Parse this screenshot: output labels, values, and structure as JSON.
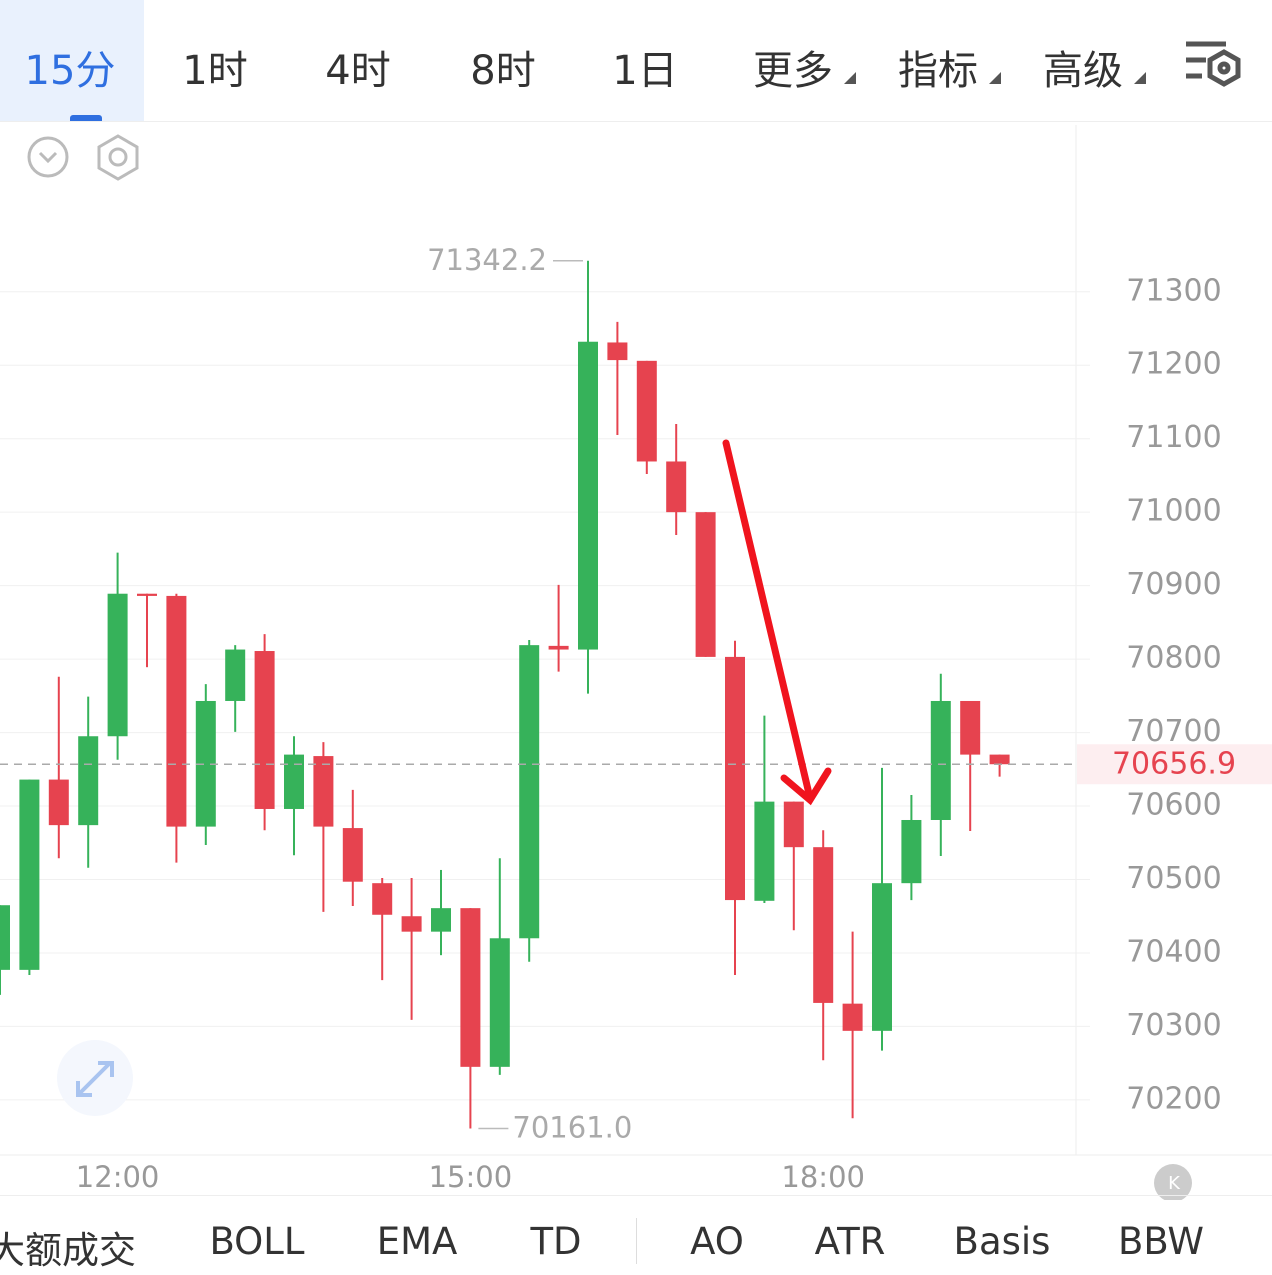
{
  "toolbar": {
    "tabs": [
      "15分",
      "1时",
      "4时",
      "8时",
      "1日",
      "更多",
      "指标",
      "高级"
    ]
  },
  "indicators": [
    "大额成交",
    "BOLL",
    "EMA",
    "TD",
    "AO",
    "ATR",
    "Basis",
    "BBW"
  ],
  "chart_data": {
    "type": "candlestick",
    "categories": [
      null,
      null,
      null,
      null,
      "12:00",
      null,
      null,
      null,
      null,
      null,
      null,
      null,
      null,
      null,
      null,
      null,
      "15:00",
      null,
      null,
      null,
      null,
      null,
      null,
      null,
      null,
      null,
      null,
      null,
      "18:00",
      null,
      null,
      null,
      null,
      null,
      null
    ],
    "open": [
      70377,
      70377,
      70636,
      70574,
      70695,
      70889,
      70886,
      70572,
      70743,
      70811,
      70596,
      70668,
      70570,
      70495,
      70450,
      70429,
      70461,
      70245,
      70420,
      70818,
      70813,
      71231,
      71206,
      71069,
      71000,
      70803,
      70471,
      70606,
      70544,
      70331,
      70294,
      70495,
      70581,
      70743,
      70670
    ],
    "high": [
      70465,
      70636,
      70776,
      70749,
      70945,
      70889,
      70889,
      70766,
      70819,
      70834,
      70695,
      70687,
      70622,
      70502,
      70502,
      70513,
      70461,
      70529,
      70826,
      70901,
      71342.2,
      71259,
      71206,
      71120,
      71000,
      70825,
      70723,
      70606,
      70567,
      70429,
      70652,
      70615,
      70780,
      70743,
      70670
    ],
    "low": [
      70343,
      70370,
      70529,
      70516,
      70663,
      70789,
      70523,
      70547,
      70701,
      70567,
      70533,
      70456,
      70464,
      70363,
      70309,
      70397,
      70161.0,
      70234,
      70388,
      70783,
      70753,
      71105,
      71052,
      70969,
      70803,
      70370,
      70468,
      70431,
      70254,
      70175,
      70267,
      70472,
      70532,
      70566,
      70640
    ],
    "close": [
      70465,
      70636,
      70574,
      70695,
      70889,
      70886,
      70572,
      70743,
      70813,
      70596,
      70670,
      70572,
      70497,
      70452,
      70429,
      70461,
      70245,
      70420,
      70819,
      70813,
      71232,
      71207,
      71069,
      71000,
      70803,
      70472,
      70606,
      70544,
      70332,
      70294,
      70495,
      70581,
      70743,
      70670,
      70656.9
    ],
    "extreme_labels": {
      "high": "71342.2",
      "low": "70161.0"
    },
    "up_color": "#36b25a",
    "down_color": "#e6434f",
    "ylim": [
      70125,
      71527
    ],
    "yticks": [
      70200,
      70300,
      70400,
      70500,
      70600,
      70700,
      70800,
      70900,
      71000,
      71100,
      71200,
      71300
    ],
    "grid": true
  }
}
